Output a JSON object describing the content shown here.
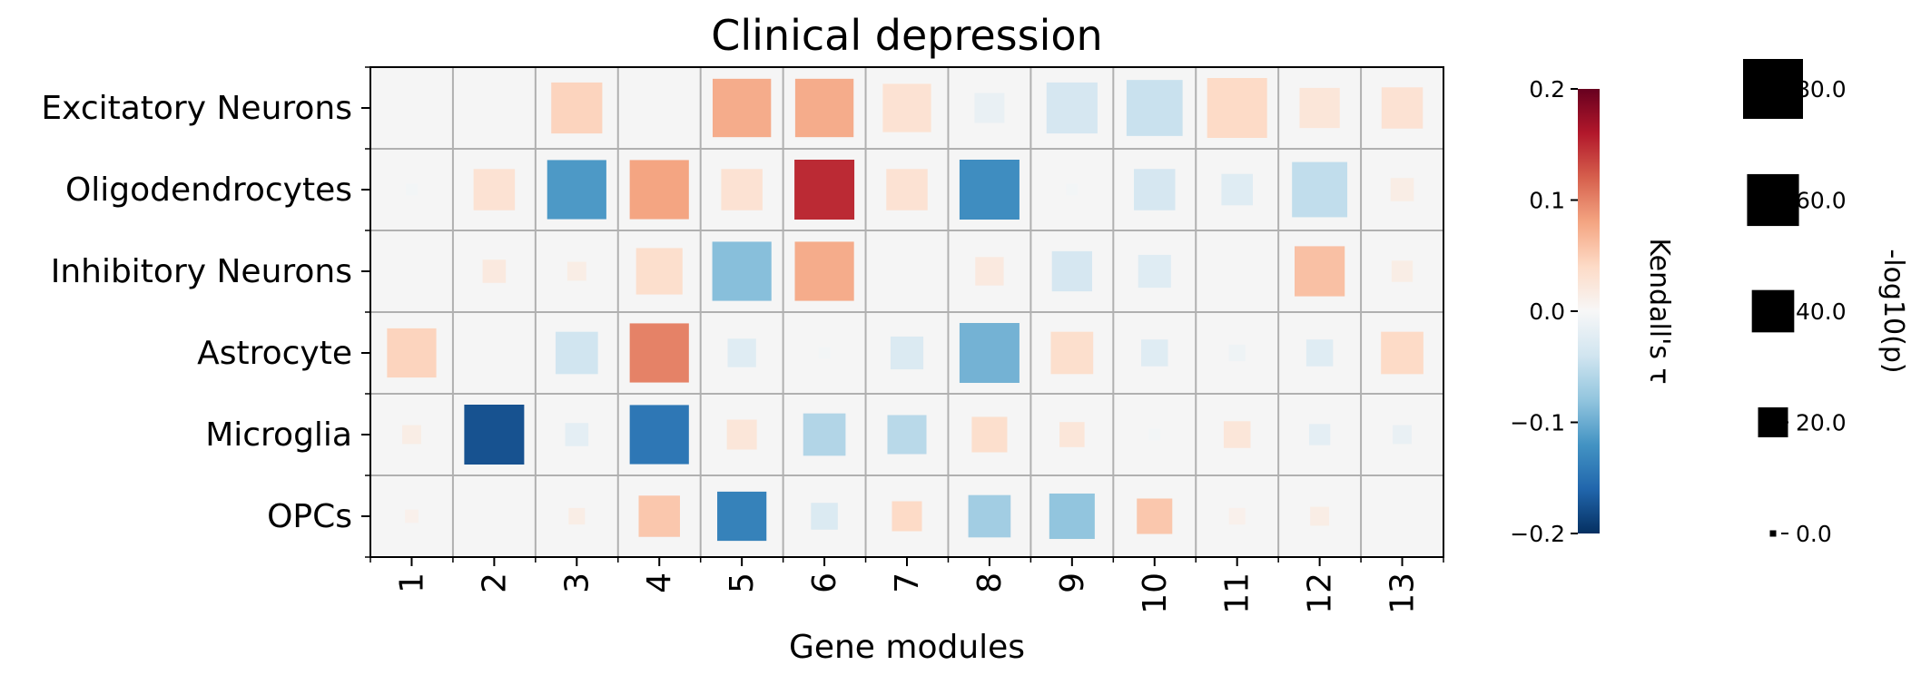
{
  "chart_data": {
    "type": "heatmap",
    "title": "Clinical depression",
    "xlabel": "Gene modules",
    "ylabel": "",
    "x_categories": [
      "1",
      "2",
      "3",
      "4",
      "5",
      "6",
      "7",
      "8",
      "9",
      "10",
      "11",
      "12",
      "13"
    ],
    "y_categories": [
      "Excitatory Neurons",
      "Oligodendrocytes",
      "Inhibitory Neurons",
      "Astrocyte",
      "Microglia",
      "OPCs"
    ],
    "tau": [
      [
        0,
        0,
        0.045,
        0,
        0.075,
        0.075,
        0.03,
        -0.015,
        -0.035,
        -0.045,
        0.04,
        0.025,
        0.03
      ],
      [
        -0.005,
        0.03,
        -0.115,
        0.08,
        0.03,
        0.15,
        0.03,
        -0.125,
        -0.005,
        -0.035,
        -0.025,
        -0.05,
        0.015
      ],
      [
        0,
        0.02,
        0.015,
        0.035,
        -0.085,
        0.075,
        0,
        0.02,
        -0.035,
        -0.025,
        0,
        0.06,
        0.015
      ],
      [
        0.045,
        0,
        -0.04,
        0.1,
        -0.025,
        -0.005,
        -0.03,
        -0.095,
        0.035,
        -0.025,
        -0.01,
        -0.025,
        0.04
      ],
      [
        0.015,
        -0.175,
        -0.02,
        -0.145,
        0.025,
        -0.06,
        -0.055,
        0.035,
        0.025,
        -0.005,
        0.025,
        -0.02,
        -0.015
      ],
      [
        0.01,
        0,
        0.015,
        0.055,
        -0.135,
        -0.03,
        0.04,
        -0.07,
        -0.08,
        0.055,
        0.01,
        0.015,
        0
      ]
    ],
    "neglog10p": [
      [
        0,
        0,
        58,
        0,
        76,
        76,
        52,
        20,
        58,
        70,
        80,
        36,
        38
      ],
      [
        3,
        38,
        78,
        78,
        38,
        80,
        38,
        80,
        3,
        38,
        22,
        68,
        12
      ],
      [
        0,
        12,
        8,
        48,
        78,
        78,
        0,
        18,
        36,
        24,
        0,
        56,
        10
      ],
      [
        54,
        0,
        40,
        78,
        18,
        3,
        24,
        80,
        40,
        16,
        6,
        16,
        40
      ],
      [
        8,
        80,
        12,
        78,
        20,
        40,
        34,
        28,
        14,
        3,
        16,
        10,
        8
      ],
      [
        4,
        0,
        6,
        38,
        54,
        16,
        20,
        40,
        46,
        28,
        6,
        8,
        0
      ]
    ],
    "colorbar": {
      "label": "Kendall's τ",
      "range": [
        -0.2,
        0.2
      ],
      "ticks": [
        "0.2",
        "0.1",
        "0.0",
        "−0.1",
        "−0.2"
      ],
      "colormap": "RdBu_r"
    },
    "size_legend": {
      "label": "-log10(p)",
      "values": [
        80,
        60,
        40,
        20,
        0
      ],
      "ticks": [
        "80.0",
        "60.0",
        "40.0",
        "20.0",
        "0.0"
      ]
    },
    "grid": true
  }
}
